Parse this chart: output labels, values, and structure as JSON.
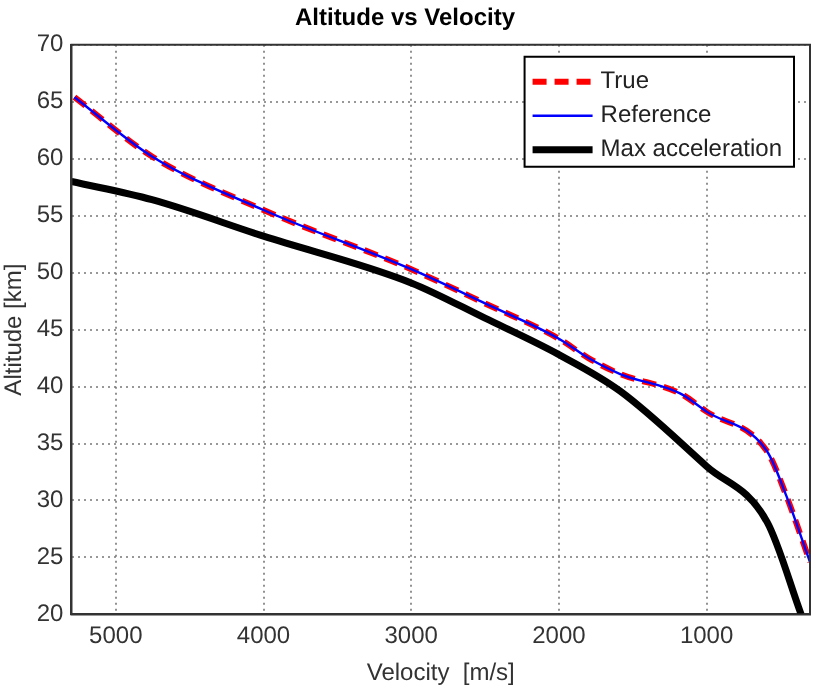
{
  "chart_data": {
    "type": "line",
    "title": "Altitude vs Velocity",
    "xlabel": "Velocity  [m/s]",
    "ylabel": "Altitude [km]",
    "xlim": [
      5300,
      300
    ],
    "xticks": [
      5000,
      4000,
      3000,
      2000,
      1000
    ],
    "ylim": [
      20,
      70
    ],
    "yticks": [
      20,
      25,
      30,
      35,
      40,
      45,
      50,
      55,
      60,
      65,
      70
    ],
    "grid": true,
    "legend": "top right",
    "marker": "none",
    "series": [
      {
        "name": "True",
        "color": "#ff0000",
        "line_style": "dashed",
        "x": [
          5280,
          4755,
          4000,
          3000,
          2500,
          2000,
          1800,
          1585,
          1180,
          1000,
          590,
          460,
          300
        ],
        "values": [
          65.4,
          60.2,
          55.5,
          50.3,
          47.3,
          44.2,
          42.5,
          41.1,
          39.4,
          37.8,
          34.3,
          30.4,
          24.6
        ]
      },
      {
        "name": "Reference",
        "color": "#0000ff",
        "line_style": "solid",
        "x": [
          5280,
          4755,
          4000,
          3000,
          2500,
          2000,
          1800,
          1585,
          1180,
          1000,
          590,
          460,
          300
        ],
        "values": [
          65.4,
          60.2,
          55.5,
          50.3,
          47.3,
          44.2,
          42.5,
          41.1,
          39.4,
          37.8,
          34.3,
          30.4,
          24.6
        ]
      },
      {
        "name": "Max acceleration",
        "color": "#000000",
        "line_style": "solid",
        "x": [
          5300,
          4755,
          4000,
          3000,
          2500,
          2000,
          1585,
          1000,
          590,
          360
        ],
        "values": [
          58,
          56.4,
          53.2,
          49.1,
          46,
          42.8,
          39.6,
          33,
          28.1,
          20
        ]
      }
    ]
  }
}
